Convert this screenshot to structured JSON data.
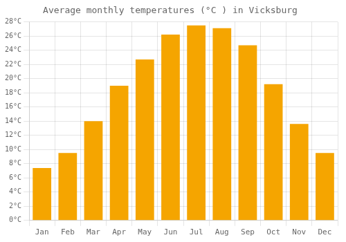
{
  "chart_data": {
    "type": "bar",
    "title": "Average monthly temperatures (°C ) in Vicksburg",
    "categories": [
      "Jan",
      "Feb",
      "Mar",
      "Apr",
      "May",
      "Jun",
      "Jul",
      "Aug",
      "Sep",
      "Oct",
      "Nov",
      "Dec"
    ],
    "values": [
      7.4,
      9.5,
      14.0,
      19.0,
      22.7,
      26.2,
      27.5,
      27.1,
      24.7,
      19.2,
      13.6,
      9.5
    ],
    "color": "#F5A500",
    "ylim": [
      0,
      28
    ],
    "yticks": [
      {
        "value": 0,
        "label": "0°C"
      },
      {
        "value": 2,
        "label": "2°C"
      },
      {
        "value": 4,
        "label": "4°C"
      },
      {
        "value": 6,
        "label": "6°C"
      },
      {
        "value": 8,
        "label": "8°C"
      },
      {
        "value": 10,
        "label": "10°C"
      },
      {
        "value": 12,
        "label": "12°C"
      },
      {
        "value": 14,
        "label": "14°C"
      },
      {
        "value": 16,
        "label": "16°C"
      },
      {
        "value": 18,
        "label": "18°C"
      },
      {
        "value": 20,
        "label": "20°C"
      },
      {
        "value": 22,
        "label": "22°C"
      },
      {
        "value": 24,
        "label": "24°C"
      },
      {
        "value": 26,
        "label": "26°C"
      },
      {
        "value": 28,
        "label": "28°C"
      }
    ],
    "grid": true
  }
}
